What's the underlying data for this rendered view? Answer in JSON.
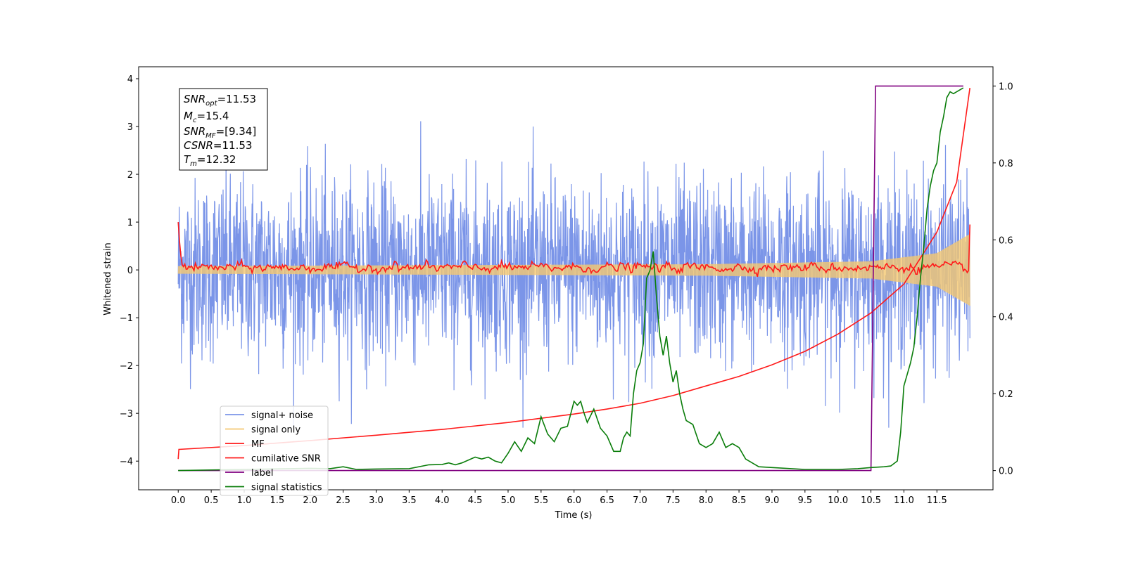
{
  "chart_data": {
    "type": "line",
    "xlabel": "Time (s)",
    "ylabel_left": "Whitened strain",
    "xlim": [
      -0.6,
      12.35
    ],
    "ylim_left": [
      -4.6,
      4.25
    ],
    "ylim_right": [
      -0.05,
      1.05
    ],
    "x_ticks": [
      "0.0",
      "0.5",
      "1.0",
      "1.5",
      "2.0",
      "2.5",
      "3.0",
      "3.5",
      "4.0",
      "4.5",
      "5.0",
      "5.5",
      "6.0",
      "6.5",
      "7.0",
      "7.5",
      "8.0",
      "8.5",
      "9.0",
      "9.5",
      "10.0",
      "10.5",
      "11.0",
      "11.5"
    ],
    "y_left_ticks": [
      "4",
      "3",
      "2",
      "1",
      "0",
      "−1",
      "−2",
      "−3",
      "−4"
    ],
    "y_right_ticks": [
      "1.0",
      "0.8",
      "0.6",
      "0.4",
      "0.2",
      "0.0"
    ],
    "annotation": {
      "snr_opt": {
        "sym": "SNR",
        "sub": "opt",
        "val": "=11.53"
      },
      "mc": {
        "sym": "M",
        "sub": "c",
        "val": "=15.4"
      },
      "snr_mf": {
        "sym": "SNR",
        "sub": "MF",
        "val": "=[9.34]"
      },
      "csnr": {
        "sym": "CSNR",
        "sub": "",
        "val": "=11.53"
      },
      "tm": {
        "sym": "T",
        "sub": "m",
        "val": "=12.32"
      }
    },
    "legend": {
      "placement": "lower-left",
      "entries": [
        {
          "label": "signal+ noise",
          "color": "#7b95e8"
        },
        {
          "label": "signal only",
          "color": "#f5c870"
        },
        {
          "label": "MF",
          "color": "#ff1a1a"
        },
        {
          "label": "cumilative SNR",
          "color": "#ff1a1a"
        },
        {
          "label": "label",
          "color": "#800080"
        },
        {
          "label": "signal statistics",
          "color": "#0a7d0a"
        }
      ]
    },
    "series": [
      {
        "name": "signal+ noise",
        "axis": "left",
        "x_range": [
          0.0,
          12.0
        ],
        "amplitude_std": 1.0,
        "color": "#7b95e8"
      },
      {
        "name": "signal only",
        "axis": "left",
        "x_range": [
          0.0,
          12.0
        ],
        "envelope": [
          [
            0.0,
            0.08
          ],
          [
            8.0,
            0.12
          ],
          [
            10.5,
            0.18
          ],
          [
            11.5,
            0.35
          ],
          [
            12.0,
            0.75
          ]
        ],
        "color": "#f5c870"
      },
      {
        "name": "MF",
        "axis": "left",
        "x_range": [
          0.0,
          12.0
        ],
        "start": 1.0,
        "level": 0.05,
        "end": 0.95,
        "color": "#ff1a1a"
      },
      {
        "name": "cumilative SNR",
        "axis": "right",
        "x": [
          0.0,
          0.01,
          1.0,
          2.0,
          3.0,
          4.0,
          5.0,
          6.0,
          6.5,
          7.0,
          7.5,
          8.0,
          8.5,
          9.0,
          9.5,
          10.0,
          10.5,
          11.0,
          11.5,
          11.8,
          12.0
        ],
        "y": [
          0.03,
          0.055,
          0.065,
          0.078,
          0.092,
          0.107,
          0.125,
          0.147,
          0.16,
          0.175,
          0.195,
          0.22,
          0.245,
          0.275,
          0.31,
          0.355,
          0.41,
          0.485,
          0.62,
          0.75,
          0.995
        ],
        "color": "#ff1a1a"
      },
      {
        "name": "label",
        "axis": "right",
        "x": [
          0.0,
          10.5,
          10.57,
          11.9
        ],
        "y": [
          0.0,
          0.0,
          1.0,
          1.0
        ],
        "color": "#800080"
      },
      {
        "name": "signal statistics",
        "axis": "right",
        "x": [
          0.0,
          1.0,
          2.0,
          2.3,
          2.5,
          2.7,
          3.0,
          3.5,
          3.8,
          4.0,
          4.1,
          4.2,
          4.3,
          4.5,
          4.6,
          4.7,
          4.8,
          4.9,
          5.0,
          5.1,
          5.2,
          5.3,
          5.4,
          5.5,
          5.6,
          5.7,
          5.8,
          5.9,
          6.0,
          6.05,
          6.1,
          6.15,
          6.2,
          6.3,
          6.4,
          6.5,
          6.6,
          6.7,
          6.75,
          6.8,
          6.85,
          6.9,
          6.95,
          7.0,
          7.05,
          7.1,
          7.15,
          7.2,
          7.25,
          7.3,
          7.35,
          7.4,
          7.45,
          7.5,
          7.55,
          7.6,
          7.65,
          7.7,
          7.8,
          7.9,
          8.0,
          8.1,
          8.2,
          8.3,
          8.4,
          8.5,
          8.6,
          8.8,
          9.0,
          9.5,
          10.0,
          10.3,
          10.5,
          10.7,
          10.8,
          10.9,
          10.95,
          11.0,
          11.05,
          11.1,
          11.15,
          11.2,
          11.25,
          11.3,
          11.35,
          11.4,
          11.45,
          11.5,
          11.55,
          11.6,
          11.65,
          11.7,
          11.75,
          11.8,
          11.85,
          11.9
        ],
        "y": [
          0.0,
          0.003,
          0.006,
          0.005,
          0.01,
          0.003,
          0.004,
          0.005,
          0.015,
          0.016,
          0.02,
          0.015,
          0.02,
          0.035,
          0.03,
          0.035,
          0.025,
          0.02,
          0.045,
          0.075,
          0.05,
          0.085,
          0.07,
          0.14,
          0.095,
          0.075,
          0.11,
          0.115,
          0.18,
          0.17,
          0.18,
          0.15,
          0.125,
          0.16,
          0.11,
          0.09,
          0.05,
          0.05,
          0.085,
          0.1,
          0.09,
          0.2,
          0.26,
          0.28,
          0.33,
          0.5,
          0.52,
          0.57,
          0.45,
          0.35,
          0.3,
          0.35,
          0.28,
          0.23,
          0.26,
          0.2,
          0.16,
          0.13,
          0.12,
          0.07,
          0.06,
          0.07,
          0.1,
          0.06,
          0.07,
          0.06,
          0.03,
          0.01,
          0.008,
          0.003,
          0.003,
          0.005,
          0.008,
          0.01,
          0.012,
          0.025,
          0.1,
          0.22,
          0.25,
          0.28,
          0.32,
          0.4,
          0.5,
          0.58,
          0.68,
          0.74,
          0.78,
          0.8,
          0.88,
          0.92,
          0.97,
          0.985,
          0.98,
          0.985,
          0.99,
          0.995
        ],
        "color": "#0a7d0a"
      }
    ]
  }
}
